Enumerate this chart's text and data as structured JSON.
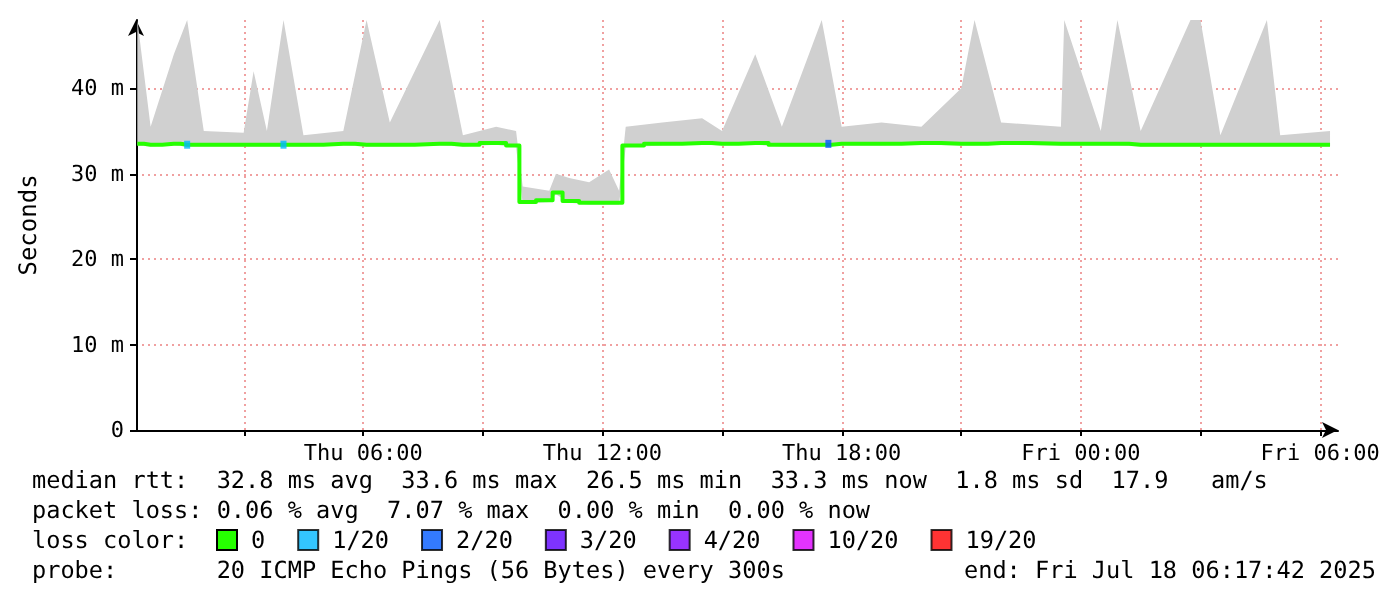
{
  "chart_data": {
    "type": "line",
    "ylabel": "Seconds",
    "x": [
      "2025-07-17T00:20",
      "2025-07-17T00:40",
      "2025-07-17T01:15",
      "2025-07-17T01:35",
      "2025-07-17T02:00",
      "2025-07-17T03:00",
      "2025-07-17T03:15",
      "2025-07-17T03:35",
      "2025-07-17T04:00",
      "2025-07-17T04:30",
      "2025-07-17T05:30",
      "2025-07-17T06:05",
      "2025-07-17T06:40",
      "2025-07-17T07:55",
      "2025-07-17T08:30",
      "2025-07-17T09:20",
      "2025-07-17T09:50",
      "2025-07-17T10:00",
      "2025-07-17T10:40",
      "2025-07-17T10:50",
      "2025-07-17T11:10",
      "2025-07-17T11:40",
      "2025-07-17T12:10",
      "2025-07-17T12:25",
      "2025-07-17T12:35",
      "2025-07-17T13:30",
      "2025-07-17T14:30",
      "2025-07-17T15:00",
      "2025-07-17T15:50",
      "2025-07-17T16:30",
      "2025-07-17T17:30",
      "2025-07-17T18:00",
      "2025-07-17T19:00",
      "2025-07-17T20:00",
      "2025-07-17T21:00",
      "2025-07-17T21:20",
      "2025-07-17T22:00",
      "2025-07-17T23:30",
      "2025-07-17T23:35",
      "2025-07-18T00:30",
      "2025-07-18T00:55",
      "2025-07-18T01:30",
      "2025-07-18T02:45",
      "2025-07-18T03:00",
      "2025-07-18T03:30",
      "2025-07-18T04:40",
      "2025-07-18T05:00",
      "2025-07-18T06:15"
    ],
    "series": [
      {
        "name": "0",
        "color": "#26ff00",
        "values": [
          33.5,
          33.4,
          33.5,
          33.4,
          33.4,
          33.4,
          33.4,
          33.4,
          33.4,
          33.4,
          33.5,
          33.4,
          33.4,
          33.5,
          33.4,
          33.6,
          33.3,
          26.7,
          26.9,
          27.8,
          26.8,
          26.6,
          26.6,
          26.6,
          33.3,
          33.5,
          33.6,
          33.5,
          33.6,
          33.4,
          33.4,
          33.5,
          33.5,
          33.6,
          33.5,
          33.5,
          33.6,
          33.5,
          33.5,
          33.5,
          33.5,
          33.4,
          33.4,
          33.4,
          33.4,
          33.4,
          33.4,
          33.4
        ],
        "lower": [
          33.3,
          33.2,
          33.3,
          33.2,
          33.2,
          33.2,
          33.2,
          33.2,
          33.2,
          33.2,
          33.3,
          33.2,
          33.2,
          33.3,
          33.2,
          33.4,
          33.1,
          26.5,
          26.7,
          27.6,
          26.6,
          26.4,
          26.4,
          26.4,
          33.1,
          33.3,
          33.4,
          33.3,
          33.4,
          33.2,
          33.2,
          33.3,
          33.3,
          33.4,
          33.3,
          33.3,
          33.4,
          33.3,
          33.3,
          33.3,
          33.3,
          33.2,
          33.2,
          33.2,
          33.2,
          33.2,
          33.2,
          33.2
        ],
        "upper": [
          48,
          35.5,
          44,
          48,
          35,
          34.8,
          42,
          35,
          48,
          34.5,
          35,
          48,
          36,
          48,
          34.5,
          35.5,
          35,
          28.5,
          28,
          30,
          29.5,
          29,
          30.5,
          28,
          35.5,
          36,
          36.5,
          35,
          44,
          35.5,
          48,
          35.5,
          36,
          35.5,
          40,
          48,
          36,
          35.5,
          48,
          35,
          48,
          35,
          48,
          48,
          34.5,
          48,
          34.5,
          35
        ]
      },
      {
        "name": "1/20",
        "type": "scatter",
        "marker": "square",
        "color": "#00b8ff",
        "x": [
          "2025-07-17T01:35",
          "2025-07-17T04:00"
        ],
        "values": [
          33.4,
          33.4
        ]
      },
      {
        "name": "2/20",
        "type": "scatter",
        "marker": "square",
        "color": "#0059ff",
        "x": [
          "2025-07-17T17:40"
        ],
        "values": [
          33.5
        ]
      },
      {
        "name": "3/20",
        "type": "scatter",
        "marker": "square",
        "color": "#5e00ff",
        "values": [
          null,
          null,
          null,
          null,
          null,
          null,
          null,
          null,
          null,
          null,
          null,
          null,
          null,
          null,
          null,
          null,
          null,
          null,
          null,
          null,
          null,
          null,
          null,
          null,
          null,
          null,
          null,
          null,
          null,
          null,
          null,
          null,
          null,
          null,
          null,
          null,
          null,
          null,
          null,
          null,
          null,
          null,
          null,
          null,
          null,
          null,
          null,
          null
        ]
      },
      {
        "name": "4/20",
        "type": "scatter",
        "marker": "square",
        "color": "#7e00ff",
        "values": [
          null,
          null,
          null,
          null,
          null,
          null,
          null,
          null,
          null,
          null,
          null,
          null,
          null,
          null,
          null,
          null,
          null,
          null,
          null,
          null,
          null,
          null,
          null,
          null,
          null,
          null,
          null,
          null,
          null,
          null,
          null,
          null,
          null,
          null,
          null,
          null,
          null,
          null,
          null,
          null,
          null,
          null,
          null,
          null,
          null,
          null,
          null,
          null
        ]
      },
      {
        "name": "10/20",
        "type": "scatter",
        "marker": "square",
        "color": "#dd00ff",
        "values": [
          null,
          null,
          null,
          null,
          null,
          null,
          null,
          null,
          null,
          null,
          null,
          null,
          null,
          null,
          null,
          null,
          null,
          null,
          null,
          null,
          null,
          null,
          null,
          null,
          null,
          null,
          null,
          null,
          null,
          null,
          null,
          null,
          null,
          null,
          null,
          null,
          null,
          null,
          null,
          null,
          null,
          null,
          null,
          null,
          null,
          null,
          null,
          null
        ]
      },
      {
        "name": "19/20",
        "type": "scatter",
        "marker": "square",
        "color": "#ff0000",
        "values": [
          null,
          null,
          null,
          null,
          null,
          null,
          null,
          null,
          null,
          null,
          null,
          null,
          null,
          null,
          null,
          null,
          null,
          null,
          null,
          null,
          null,
          null,
          null,
          null,
          null,
          null,
          null,
          null,
          null,
          null,
          null,
          null,
          null,
          null,
          null,
          null,
          null,
          null,
          null,
          null,
          null,
          null,
          null,
          null,
          null,
          null,
          null,
          null
        ]
      }
    ],
    "xlim": [
      "2025-07-17T00:18",
      "2025-07-18T06:27"
    ],
    "xticks": [
      {
        "value": "2025-07-17T03:00",
        "label": null
      },
      {
        "value": "2025-07-17T06:00",
        "label": "Thu 06:00"
      },
      {
        "value": "2025-07-17T09:00",
        "label": null
      },
      {
        "value": "2025-07-17T12:00",
        "label": "Thu 12:00"
      },
      {
        "value": "2025-07-17T15:00",
        "label": null
      },
      {
        "value": "2025-07-17T18:00",
        "label": "Thu 18:00"
      },
      {
        "value": "2025-07-17T21:00",
        "label": null
      },
      {
        "value": "2025-07-18T00:00",
        "label": "Fri 00:00"
      },
      {
        "value": "2025-07-18T03:00",
        "label": null
      },
      {
        "value": "2025-07-18T06:00",
        "label": "Fri 06:00"
      }
    ],
    "ylim": [
      0,
      48
    ],
    "yticks": [
      0,
      {
        "value": 10,
        "label": "10 m"
      },
      {
        "value": 20,
        "label": "20 m"
      },
      {
        "value": 30,
        "label": "30 m"
      },
      {
        "value": 40,
        "label": "40 m"
      }
    ],
    "grid": true,
    "legend": "bottom left",
    "marker": "none",
    "line_style": "solid",
    "annotations": [
      "median rtt:  32.8 ms avg  33.6 ms max  26.5 ms min  33.3 ms now  1.8 ms sd  17.9   am/s",
      "packet loss: 0.06 % avg  7.07 % max  0.00 % min  0.00 % now",
      "loss color:",
      "probe:       20 ICMP Echo Pings (56 Bytes) every 300s",
      "end: Fri Jul 18 06:17:42 2025"
    ]
  }
}
